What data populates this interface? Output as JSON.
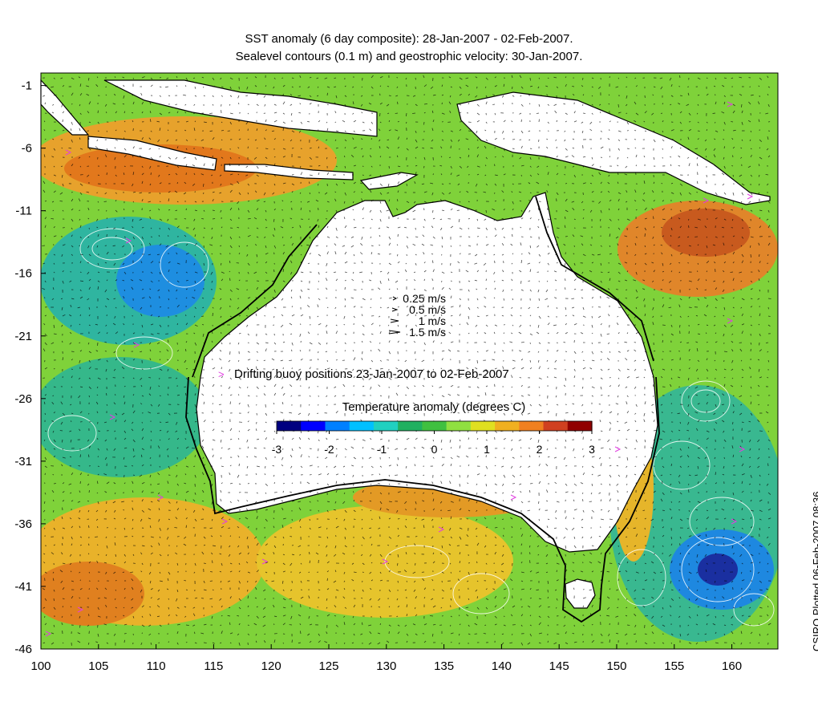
{
  "title_line1": "SST anomaly (6 day composite): 28-Jan-2007 - 02-Feb-2007.",
  "title_line2": "Sealevel contours (0.1 m) and geostrophic velocity: 30-Jan-2007.",
  "credit": "CSIRO Plotted 06-Feb-2007 08:36",
  "axes": {
    "x_ticks": [
      "100",
      "105",
      "110",
      "115",
      "120",
      "125",
      "130",
      "135",
      "140",
      "145",
      "150",
      "155",
      "160"
    ],
    "y_ticks": [
      "-1",
      "-6",
      "-11",
      "-16",
      "-21",
      "-26",
      "-31",
      "-36",
      "-41",
      "-46"
    ],
    "lon_range": [
      100,
      164
    ],
    "lat_range": [
      -46,
      0
    ]
  },
  "velocity_legend": [
    {
      "label": "0.25 m/s",
      "speed": 0.25
    },
    {
      "label": "0.5 m/s",
      "speed": 0.5
    },
    {
      "label": "1 m/s",
      "speed": 1
    },
    {
      "label": "1.5 m/s",
      "speed": 1.5
    }
  ],
  "buoy_legend": {
    "symbol": ">",
    "label": "Drifting buoy positions 23-Jan-2007 to 02-Feb-2007",
    "color": "#e040e0"
  },
  "colorbar": {
    "title": "Temperature anomaly (degrees C)",
    "ticks": [
      "-3",
      "-2",
      "-1",
      "0",
      "1",
      "2",
      "3"
    ],
    "range": [
      -3,
      3
    ],
    "colors": [
      "#000080",
      "#0000ff",
      "#0080ff",
      "#00c0ff",
      "#20d0c0",
      "#20b060",
      "#40c040",
      "#90e040",
      "#e0e020",
      "#f0b020",
      "#f08020",
      "#d04020",
      "#900000"
    ]
  },
  "colors": {
    "land": "#ffffff",
    "coastline": "#000000",
    "shelf_contour": "#000000",
    "sealevel_contours": "#ffffff",
    "arrows": "#000000"
  }
}
